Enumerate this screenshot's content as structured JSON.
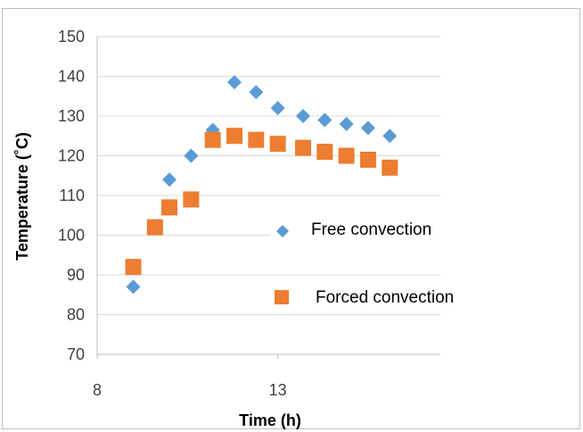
{
  "chart_data": {
    "type": "scatter",
    "xlabel": "Time (h)",
    "ylabel": "Temperature (˚C)",
    "xlim": [
      8,
      17.5
    ],
    "ylim": [
      70,
      150
    ],
    "x_ticks": [
      "8",
      "13"
    ],
    "y_ticks": [
      "70",
      "80",
      "90",
      "100",
      "110",
      "120",
      "130",
      "140",
      "150"
    ],
    "grid": "horizontal",
    "legend_position": "right",
    "series": [
      {
        "name": "Free convection",
        "marker": "diamond",
        "color": "#5B9BD5",
        "points": [
          {
            "x": 9.0,
            "y": 87
          },
          {
            "x": 10.0,
            "y": 114
          },
          {
            "x": 10.6,
            "y": 120
          },
          {
            "x": 11.2,
            "y": 126.5
          },
          {
            "x": 11.8,
            "y": 138.5
          },
          {
            "x": 12.4,
            "y": 136
          },
          {
            "x": 13.0,
            "y": 132
          },
          {
            "x": 13.7,
            "y": 130
          },
          {
            "x": 14.3,
            "y": 129
          },
          {
            "x": 14.9,
            "y": 128
          },
          {
            "x": 15.5,
            "y": 127
          },
          {
            "x": 16.1,
            "y": 125
          }
        ]
      },
      {
        "name": "Forced convection",
        "marker": "square",
        "color": "#ED7D31",
        "points": [
          {
            "x": 9.0,
            "y": 92
          },
          {
            "x": 9.6,
            "y": 102
          },
          {
            "x": 10.0,
            "y": 107
          },
          {
            "x": 10.6,
            "y": 109
          },
          {
            "x": 11.2,
            "y": 124
          },
          {
            "x": 11.8,
            "y": 125
          },
          {
            "x": 12.4,
            "y": 124
          },
          {
            "x": 13.0,
            "y": 123
          },
          {
            "x": 13.7,
            "y": 122
          },
          {
            "x": 14.3,
            "y": 121
          },
          {
            "x": 14.9,
            "y": 120
          },
          {
            "x": 15.5,
            "y": 119
          },
          {
            "x": 16.1,
            "y": 117
          }
        ]
      }
    ]
  }
}
